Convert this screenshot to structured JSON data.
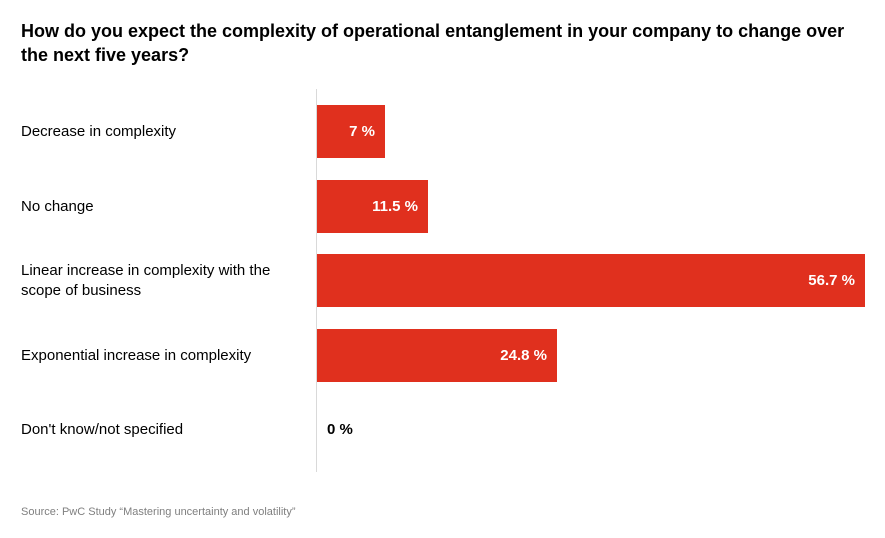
{
  "chart_data": {
    "type": "bar",
    "orientation": "horizontal",
    "title": "How do you expect the complexity of operational entanglement in your company to change over the next five years?",
    "categories": [
      "Decrease in complexity",
      "No change",
      "Linear increase in complexity with the scope of business",
      "Exponential increase in complexity",
      "Don't know/not specified"
    ],
    "values": [
      7,
      11.5,
      56.7,
      24.8,
      0
    ],
    "value_labels": [
      "7 %",
      "11.5 %",
      "56.7 %",
      "24.8 %",
      "0 %"
    ],
    "xlim": [
      0,
      56.7
    ],
    "grid": false,
    "legend": "none",
    "bar_color": "#e0301e",
    "source": "Source: PwC Study “Mastering uncertainty and volatility”"
  }
}
